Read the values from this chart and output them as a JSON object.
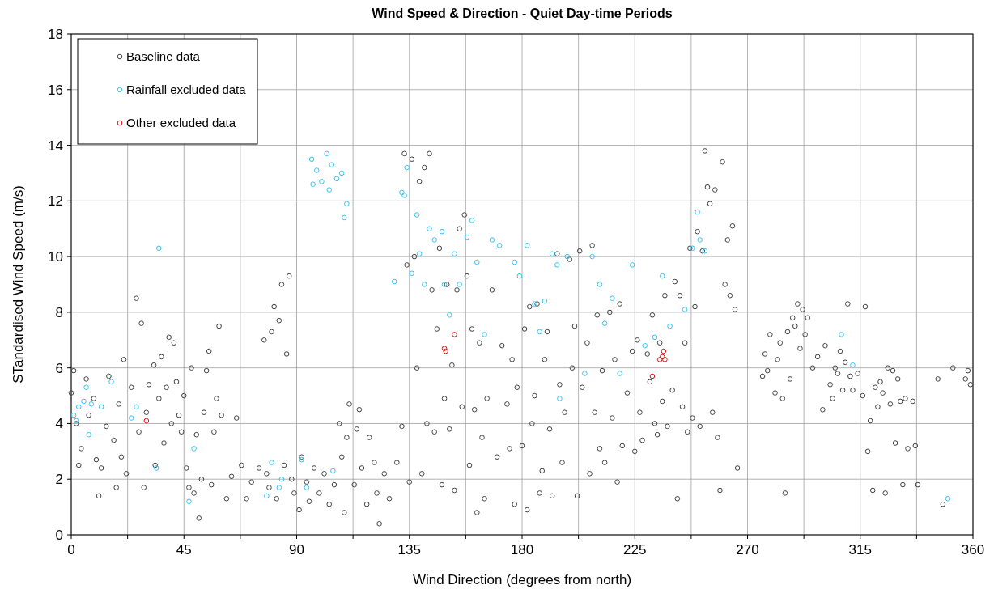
{
  "chart_data": {
    "type": "scatter",
    "title": "Wind Speed & Direction - Quiet Day-time Periods",
    "xlabel": "Wind Direction (degrees from north)",
    "ylabel": "STandardised Wind Speed (m/s)",
    "xlim": [
      0,
      360
    ],
    "ylim": [
      0,
      18
    ],
    "xticks": [
      0,
      {
        "value": 22.5,
        "label": null
      },
      45,
      {
        "value": 67.5,
        "label": null
      },
      90,
      {
        "value": 112.5,
        "label": null
      },
      135,
      {
        "value": 157.5,
        "label": null
      },
      180,
      {
        "value": 202.5,
        "label": null
      },
      225,
      {
        "value": 247.5,
        "label": null
      },
      270,
      {
        "value": 292.5,
        "label": null
      },
      315,
      {
        "value": 337.5,
        "label": null
      },
      360
    ],
    "yticks": [
      0,
      2,
      4,
      6,
      8,
      10,
      12,
      14,
      16,
      18
    ],
    "grid": true,
    "legend": "top left",
    "marker": "circle",
    "series": [
      {
        "name": "Baseline data",
        "color": "#404040",
        "x": [
          0,
          1,
          2,
          3,
          4,
          6,
          7,
          9,
          10,
          11,
          12,
          14,
          15,
          17,
          18,
          19,
          20,
          21,
          22,
          24,
          26,
          27,
          28,
          29,
          30,
          31,
          33,
          33.5,
          35,
          36,
          37,
          38,
          39,
          40,
          41,
          42,
          43,
          44,
          45,
          46,
          47,
          48,
          49,
          50,
          51,
          52,
          53,
          54,
          55,
          56,
          57,
          58,
          59,
          60,
          62,
          64,
          66,
          68,
          70,
          72,
          75,
          77,
          78,
          79,
          80,
          81,
          82,
          83,
          84,
          85,
          86,
          87,
          88,
          89,
          91,
          92,
          94,
          95,
          97,
          99,
          101,
          103,
          105,
          107,
          108,
          109,
          110,
          111,
          113,
          114,
          115,
          116,
          118,
          119,
          121,
          122,
          123,
          125,
          127,
          130,
          132,
          133,
          134,
          135,
          136,
          137,
          138,
          139,
          140,
          141,
          142,
          143,
          144,
          145,
          146,
          147,
          148,
          149,
          150,
          151,
          152,
          153,
          154,
          155,
          156,
          157,
          158,
          159,
          160,
          161,
          162,
          163,
          164,
          165,
          166,
          168,
          170,
          172,
          174,
          175,
          176,
          177,
          178,
          180,
          181,
          182,
          183,
          184,
          185,
          186,
          187,
          188,
          189,
          190,
          191,
          192,
          194,
          195,
          196,
          197,
          199,
          200,
          201,
          202,
          203,
          204,
          206,
          207,
          208,
          209,
          210,
          211,
          212,
          213,
          215,
          216,
          217,
          218,
          219,
          220,
          222,
          224,
          225,
          226,
          227,
          228,
          230,
          231,
          232,
          233,
          234,
          235,
          236,
          237,
          238,
          240,
          241,
          242,
          243,
          244,
          245,
          246,
          247,
          248,
          249,
          250,
          251,
          252,
          253,
          254,
          255,
          256,
          257,
          258,
          259,
          260,
          261,
          262,
          263,
          264,
          265,
          266,
          276,
          277,
          278,
          279,
          281,
          282,
          283,
          284,
          285,
          286,
          287,
          288,
          289,
          290,
          291,
          292,
          293,
          294,
          296,
          298,
          300,
          301,
          303,
          304,
          305,
          306,
          307,
          308,
          309,
          310,
          311,
          312,
          314,
          316,
          317,
          318,
          319,
          320,
          321,
          322,
          323,
          324,
          325,
          326,
          327,
          328,
          329,
          330,
          331,
          332,
          333,
          334,
          336,
          337,
          338,
          346,
          348,
          352,
          357,
          358,
          359
        ],
        "values": [
          5.1,
          5.9,
          4.0,
          2.5,
          3.1,
          5.6,
          4.3,
          4.9,
          2.7,
          1.4,
          2.4,
          3.9,
          5.7,
          3.4,
          1.7,
          4.7,
          2.8,
          6.3,
          2.2,
          5.3,
          8.5,
          3.7,
          7.6,
          1.7,
          4.4,
          5.4,
          6.1,
          2.5,
          4.9,
          6.4,
          3.3,
          5.3,
          7.1,
          4.0,
          6.9,
          5.5,
          4.3,
          3.7,
          5.0,
          2.4,
          1.7,
          6.0,
          1.5,
          3.6,
          0.6,
          2.0,
          4.4,
          5.9,
          6.6,
          1.8,
          3.7,
          4.9,
          7.5,
          4.3,
          1.3,
          2.1,
          4.2,
          2.5,
          1.3,
          1.9,
          2.4,
          7.0,
          2.2,
          1.7,
          7.3,
          8.2,
          1.3,
          7.7,
          9.0,
          2.5,
          6.5,
          9.3,
          2.0,
          1.5,
          0.9,
          2.8,
          1.9,
          1.2,
          2.4,
          1.5,
          2.2,
          1.1,
          1.8,
          4.0,
          2.8,
          0.8,
          3.5,
          4.7,
          1.8,
          3.8,
          4.5,
          2.4,
          1.1,
          3.5,
          2.6,
          1.5,
          0.4,
          2.2,
          1.3,
          2.6,
          3.9,
          13.7,
          9.7,
          1.9,
          13.5,
          10.0,
          6.0,
          12.7,
          2.2,
          13.2,
          4.0,
          13.7,
          8.8,
          3.7,
          7.4,
          10.3,
          1.8,
          4.9,
          9.0,
          3.8,
          6.1,
          1.6,
          8.8,
          11.0,
          4.6,
          11.5,
          9.3,
          2.5,
          7.4,
          4.5,
          0.8,
          6.9,
          3.5,
          1.3,
          4.9,
          8.8,
          2.8,
          6.8,
          4.7,
          3.1,
          6.3,
          1.1,
          5.3,
          3.2,
          7.4,
          0.9,
          8.2,
          4.0,
          5.0,
          8.3,
          1.5,
          2.3,
          6.3,
          7.3,
          3.8,
          1.4,
          10.1,
          5.4,
          2.6,
          4.4,
          9.9,
          6.0,
          7.5,
          1.4,
          10.2,
          5.3,
          6.9,
          2.2,
          10.4,
          4.4,
          7.9,
          3.1,
          5.9,
          2.6,
          8.0,
          4.2,
          6.3,
          1.9,
          8.3,
          3.2,
          5.1,
          6.6,
          3.0,
          7.0,
          4.4,
          3.4,
          6.5,
          5.5,
          7.9,
          4.0,
          3.6,
          6.9,
          4.8,
          8.6,
          3.9,
          5.2,
          9.1,
          1.3,
          8.6,
          4.6,
          6.9,
          3.7,
          10.3,
          4.2,
          8.2,
          10.9,
          3.9,
          10.2,
          13.8,
          12.5,
          11.9,
          4.4,
          12.4,
          3.5,
          1.6,
          13.4,
          9.0,
          10.6,
          8.6,
          11.1,
          8.1,
          2.4,
          5.7,
          6.5,
          5.9,
          7.2,
          5.1,
          6.3,
          6.9,
          4.9,
          1.5,
          7.3,
          5.6,
          7.8,
          7.5,
          8.3,
          6.7,
          8.1,
          7.2,
          7.8,
          6.0,
          6.4,
          4.5,
          6.8,
          5.4,
          4.9,
          6.0,
          5.8,
          6.6,
          5.2,
          6.2,
          8.3,
          5.7,
          5.2,
          5.8,
          5.0,
          8.2,
          3.0,
          4.1,
          1.6,
          5.3,
          4.6,
          5.5,
          5.1,
          1.5,
          6.0,
          4.7,
          5.9,
          3.3,
          5.6,
          4.8,
          1.8,
          4.9,
          3.1,
          4.8,
          3.2,
          1.8,
          5.6,
          1.1,
          6.0,
          5.6,
          5.9,
          5.4
        ]
      },
      {
        "name": "Rainfall excluded data",
        "color": "#33c3f0",
        "x": [
          1,
          2,
          3,
          5,
          6,
          7,
          8,
          12,
          16,
          24,
          26,
          34,
          35,
          47,
          49,
          78,
          80,
          83,
          84,
          92,
          94,
          96,
          96.5,
          98,
          100,
          102,
          103,
          104,
          106,
          108,
          109,
          110,
          104.5,
          129,
          132,
          133,
          134,
          136,
          138,
          139,
          141,
          143,
          145,
          148,
          149,
          151,
          153,
          155,
          158,
          160,
          162,
          165,
          168,
          171,
          177,
          179,
          182,
          185,
          187,
          189,
          192,
          194,
          195,
          198,
          205,
          208,
          211,
          213,
          216,
          219,
          224,
          229,
          233,
          236,
          239,
          245,
          248,
          250,
          251,
          253,
          307.5,
          312,
          350
        ],
        "values": [
          4.3,
          4.1,
          4.6,
          4.8,
          5.3,
          3.6,
          4.7,
          4.6,
          5.5,
          4.2,
          4.6,
          2.4,
          10.3,
          1.2,
          3.1,
          1.4,
          2.6,
          1.7,
          2.0,
          2.7,
          1.7,
          13.5,
          12.6,
          13.1,
          12.7,
          13.7,
          12.4,
          13.3,
          12.8,
          13.0,
          11.4,
          11.9,
          2.3,
          9.1,
          12.3,
          12.2,
          13.2,
          9.4,
          11.5,
          10.1,
          9.0,
          11.0,
          10.6,
          10.9,
          9.0,
          7.9,
          10.1,
          9.0,
          10.7,
          11.3,
          9.8,
          7.2,
          10.6,
          10.4,
          9.8,
          9.3,
          10.4,
          8.3,
          7.3,
          8.4,
          10.1,
          9.7,
          4.9,
          10.0,
          5.8,
          10.0,
          9.0,
          7.6,
          8.5,
          5.8,
          9.7,
          6.8,
          7.1,
          9.3,
          7.5,
          8.1,
          10.3,
          11.6,
          10.6,
          10.2,
          7.2,
          6.1,
          1.3
        ]
      },
      {
        "name": "Other excluded data",
        "color": "#e01010",
        "x": [
          30,
          149,
          149.5,
          153,
          232,
          235,
          236,
          236.5,
          237
        ],
        "values": [
          4.1,
          6.7,
          6.6,
          7.2,
          5.7,
          6.3,
          6.4,
          6.6,
          6.3
        ]
      }
    ]
  }
}
